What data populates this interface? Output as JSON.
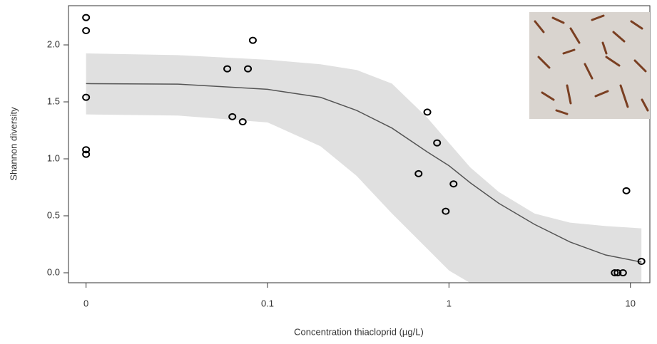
{
  "chart_data": {
    "type": "scatter",
    "xlabel": "Concentration thiacloprid (µg/L)",
    "ylabel": "Shannon diversity",
    "xscale": "log",
    "xlim": [
      0.008,
      12.8
    ],
    "ylim": [
      -0.0875,
      2.344
    ],
    "xticks": [
      {
        "value": 0.01,
        "label": "0"
      },
      0.1,
      1,
      10
    ],
    "yticks": [
      {
        "value": 0,
        "label": "0.0"
      },
      0.5,
      {
        "value": 1,
        "label": "1.0"
      },
      1.5,
      {
        "value": 2,
        "label": "2.0"
      }
    ],
    "points": {
      "color": "#000000",
      "x": [
        0.01,
        0.01,
        0.01,
        0.01,
        0.01,
        0.06,
        0.064,
        0.073,
        0.078,
        0.083,
        0.68,
        0.76,
        0.86,
        0.96,
        1.06,
        8.2,
        8.5,
        9.1,
        9.5,
        11.5
      ],
      "values": [
        2.24,
        2.125,
        1.54,
        1.08,
        1.04,
        1.79,
        1.37,
        1.325,
        1.79,
        2.04,
        0.87,
        1.41,
        1.14,
        0.54,
        0.78,
        0,
        0,
        0,
        0.72,
        0.1
      ]
    },
    "fit": {
      "color": "#555555",
      "x": [
        0.01,
        0.032,
        0.1,
        0.196,
        0.31,
        0.485,
        0.76,
        1,
        1.31,
        1.88,
        2.96,
        4.65,
        7.3,
        11.5
      ],
      "values": [
        1.66,
        1.656,
        1.61,
        1.54,
        1.425,
        1.27,
        1.06,
        0.94,
        0.79,
        0.61,
        0.425,
        0.27,
        0.156,
        0.094
      ]
    },
    "band": {
      "color": "#e0e0e0",
      "x": [
        0.01,
        0.032,
        0.1,
        0.196,
        0.31,
        0.485,
        0.76,
        1,
        1.31,
        1.88,
        2.96,
        4.65,
        7.3,
        11.5
      ],
      "upper": [
        1.925,
        1.91,
        1.87,
        1.83,
        1.78,
        1.66,
        1.36,
        1.14,
        0.925,
        0.71,
        0.52,
        0.44,
        0.41,
        0.39
      ],
      "lower": [
        1.39,
        1.38,
        1.32,
        1.11,
        0.85,
        0.52,
        0.21,
        0.02,
        -0.09,
        -0.2,
        -0.35,
        -0.45,
        -0.5,
        -0.55
      ]
    }
  }
}
